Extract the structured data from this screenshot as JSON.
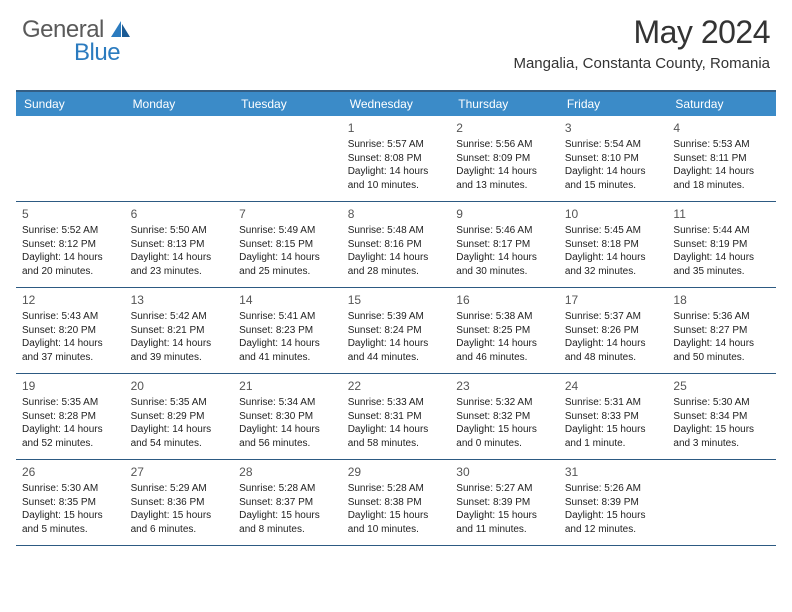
{
  "logo": {
    "general": "General",
    "blue": "Blue"
  },
  "title": "May 2024",
  "subtitle": "Mangalia, Constanta County, Romania",
  "colors": {
    "header_bg": "#3b8bc8",
    "header_border_top": "#345e84",
    "row_divider": "#2d5a82",
    "logo_gray": "#5a5a5a",
    "logo_blue": "#2b7bbf",
    "text": "#222222",
    "daynum": "#555555",
    "bg": "#ffffff"
  },
  "weekdays": [
    "Sunday",
    "Monday",
    "Tuesday",
    "Wednesday",
    "Thursday",
    "Friday",
    "Saturday"
  ],
  "calendar": {
    "start_weekday_index": 3,
    "days": [
      {
        "n": 1,
        "sunrise": "5:57 AM",
        "sunset": "8:08 PM",
        "daylight": "14 hours and 10 minutes."
      },
      {
        "n": 2,
        "sunrise": "5:56 AM",
        "sunset": "8:09 PM",
        "daylight": "14 hours and 13 minutes."
      },
      {
        "n": 3,
        "sunrise": "5:54 AM",
        "sunset": "8:10 PM",
        "daylight": "14 hours and 15 minutes."
      },
      {
        "n": 4,
        "sunrise": "5:53 AM",
        "sunset": "8:11 PM",
        "daylight": "14 hours and 18 minutes."
      },
      {
        "n": 5,
        "sunrise": "5:52 AM",
        "sunset": "8:12 PM",
        "daylight": "14 hours and 20 minutes."
      },
      {
        "n": 6,
        "sunrise": "5:50 AM",
        "sunset": "8:13 PM",
        "daylight": "14 hours and 23 minutes."
      },
      {
        "n": 7,
        "sunrise": "5:49 AM",
        "sunset": "8:15 PM",
        "daylight": "14 hours and 25 minutes."
      },
      {
        "n": 8,
        "sunrise": "5:48 AM",
        "sunset": "8:16 PM",
        "daylight": "14 hours and 28 minutes."
      },
      {
        "n": 9,
        "sunrise": "5:46 AM",
        "sunset": "8:17 PM",
        "daylight": "14 hours and 30 minutes."
      },
      {
        "n": 10,
        "sunrise": "5:45 AM",
        "sunset": "8:18 PM",
        "daylight": "14 hours and 32 minutes."
      },
      {
        "n": 11,
        "sunrise": "5:44 AM",
        "sunset": "8:19 PM",
        "daylight": "14 hours and 35 minutes."
      },
      {
        "n": 12,
        "sunrise": "5:43 AM",
        "sunset": "8:20 PM",
        "daylight": "14 hours and 37 minutes."
      },
      {
        "n": 13,
        "sunrise": "5:42 AM",
        "sunset": "8:21 PM",
        "daylight": "14 hours and 39 minutes."
      },
      {
        "n": 14,
        "sunrise": "5:41 AM",
        "sunset": "8:23 PM",
        "daylight": "14 hours and 41 minutes."
      },
      {
        "n": 15,
        "sunrise": "5:39 AM",
        "sunset": "8:24 PM",
        "daylight": "14 hours and 44 minutes."
      },
      {
        "n": 16,
        "sunrise": "5:38 AM",
        "sunset": "8:25 PM",
        "daylight": "14 hours and 46 minutes."
      },
      {
        "n": 17,
        "sunrise": "5:37 AM",
        "sunset": "8:26 PM",
        "daylight": "14 hours and 48 minutes."
      },
      {
        "n": 18,
        "sunrise": "5:36 AM",
        "sunset": "8:27 PM",
        "daylight": "14 hours and 50 minutes."
      },
      {
        "n": 19,
        "sunrise": "5:35 AM",
        "sunset": "8:28 PM",
        "daylight": "14 hours and 52 minutes."
      },
      {
        "n": 20,
        "sunrise": "5:35 AM",
        "sunset": "8:29 PM",
        "daylight": "14 hours and 54 minutes."
      },
      {
        "n": 21,
        "sunrise": "5:34 AM",
        "sunset": "8:30 PM",
        "daylight": "14 hours and 56 minutes."
      },
      {
        "n": 22,
        "sunrise": "5:33 AM",
        "sunset": "8:31 PM",
        "daylight": "14 hours and 58 minutes."
      },
      {
        "n": 23,
        "sunrise": "5:32 AM",
        "sunset": "8:32 PM",
        "daylight": "15 hours and 0 minutes."
      },
      {
        "n": 24,
        "sunrise": "5:31 AM",
        "sunset": "8:33 PM",
        "daylight": "15 hours and 1 minute."
      },
      {
        "n": 25,
        "sunrise": "5:30 AM",
        "sunset": "8:34 PM",
        "daylight": "15 hours and 3 minutes."
      },
      {
        "n": 26,
        "sunrise": "5:30 AM",
        "sunset": "8:35 PM",
        "daylight": "15 hours and 5 minutes."
      },
      {
        "n": 27,
        "sunrise": "5:29 AM",
        "sunset": "8:36 PM",
        "daylight": "15 hours and 6 minutes."
      },
      {
        "n": 28,
        "sunrise": "5:28 AM",
        "sunset": "8:37 PM",
        "daylight": "15 hours and 8 minutes."
      },
      {
        "n": 29,
        "sunrise": "5:28 AM",
        "sunset": "8:38 PM",
        "daylight": "15 hours and 10 minutes."
      },
      {
        "n": 30,
        "sunrise": "5:27 AM",
        "sunset": "8:39 PM",
        "daylight": "15 hours and 11 minutes."
      },
      {
        "n": 31,
        "sunrise": "5:26 AM",
        "sunset": "8:39 PM",
        "daylight": "15 hours and 12 minutes."
      }
    ]
  },
  "labels": {
    "sunrise": "Sunrise:",
    "sunset": "Sunset:",
    "daylight": "Daylight:"
  }
}
